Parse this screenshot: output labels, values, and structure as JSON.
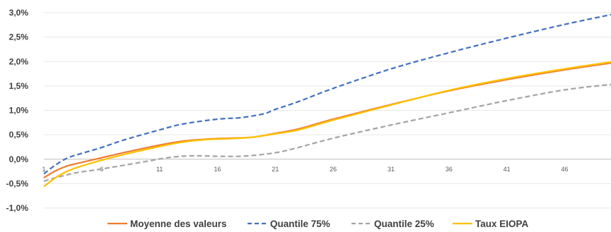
{
  "chart_data": {
    "type": "line",
    "title": "",
    "xlabel": "",
    "ylabel": "",
    "ylim": [
      -1.0,
      3.0
    ],
    "xlim": [
      1,
      50
    ],
    "y_ticks": [
      "3,0%",
      "2,5%",
      "2,0%",
      "1,5%",
      "1,0%",
      "0,5%",
      "0,0%",
      "-0,5%",
      "-1,0%"
    ],
    "y_tick_values": [
      3.0,
      2.5,
      2.0,
      1.5,
      1.0,
      0.5,
      0.0,
      -0.5,
      -1.0
    ],
    "x_ticks": [
      "1",
      "6",
      "11",
      "16",
      "21",
      "26",
      "31",
      "36",
      "41",
      "46"
    ],
    "x_tick_values": [
      1,
      6,
      11,
      16,
      21,
      26,
      31,
      36,
      41,
      46
    ],
    "grid": "horizontal",
    "legend_position": "bottom",
    "series": [
      {
        "name": "Moyenne des valeurs",
        "color": "#ED7D31",
        "style": "solid",
        "x": [
          1,
          2,
          3,
          4,
          6,
          8,
          11,
          13,
          15,
          17,
          19,
          21,
          23,
          26,
          31,
          36,
          41,
          46,
          50
        ],
        "y": [
          -0.38,
          -0.24,
          -0.14,
          -0.08,
          0.03,
          0.14,
          0.29,
          0.37,
          0.41,
          0.43,
          0.45,
          0.53,
          0.62,
          0.82,
          1.12,
          1.4,
          1.63,
          1.83,
          1.97
        ]
      },
      {
        "name": "Quantile 75%",
        "color": "#4472C4",
        "style": "dash",
        "x": [
          1,
          2,
          3,
          4,
          6,
          8,
          11,
          13,
          16,
          18,
          20,
          21,
          23,
          26,
          31,
          36,
          41,
          46,
          50
        ],
        "y": [
          -0.3,
          -0.12,
          0.02,
          0.1,
          0.24,
          0.4,
          0.6,
          0.72,
          0.82,
          0.85,
          0.93,
          1.02,
          1.18,
          1.45,
          1.85,
          2.18,
          2.48,
          2.76,
          2.96
        ]
      },
      {
        "name": "Quantile 25%",
        "color": "#A5A5A5",
        "style": "dash",
        "x": [
          1,
          2,
          3,
          4,
          6,
          9,
          12,
          14,
          16,
          18,
          20,
          22,
          26,
          31,
          36,
          41,
          46,
          50
        ],
        "y": [
          -0.45,
          -0.38,
          -0.32,
          -0.27,
          -0.2,
          -0.08,
          0.04,
          0.07,
          0.06,
          0.06,
          0.1,
          0.18,
          0.43,
          0.7,
          0.95,
          1.2,
          1.42,
          1.53
        ]
      },
      {
        "name": "Taux EIOPA",
        "color": "#FFC000",
        "style": "solid",
        "x": [
          1,
          2,
          3,
          4,
          6,
          8,
          11,
          13,
          15,
          17,
          19,
          21,
          23,
          26,
          31,
          36,
          41,
          46,
          50
        ],
        "y": [
          -0.56,
          -0.38,
          -0.25,
          -0.16,
          -0.02,
          0.1,
          0.26,
          0.35,
          0.4,
          0.42,
          0.45,
          0.52,
          0.6,
          0.8,
          1.11,
          1.41,
          1.65,
          1.85,
          1.99
        ]
      }
    ]
  }
}
